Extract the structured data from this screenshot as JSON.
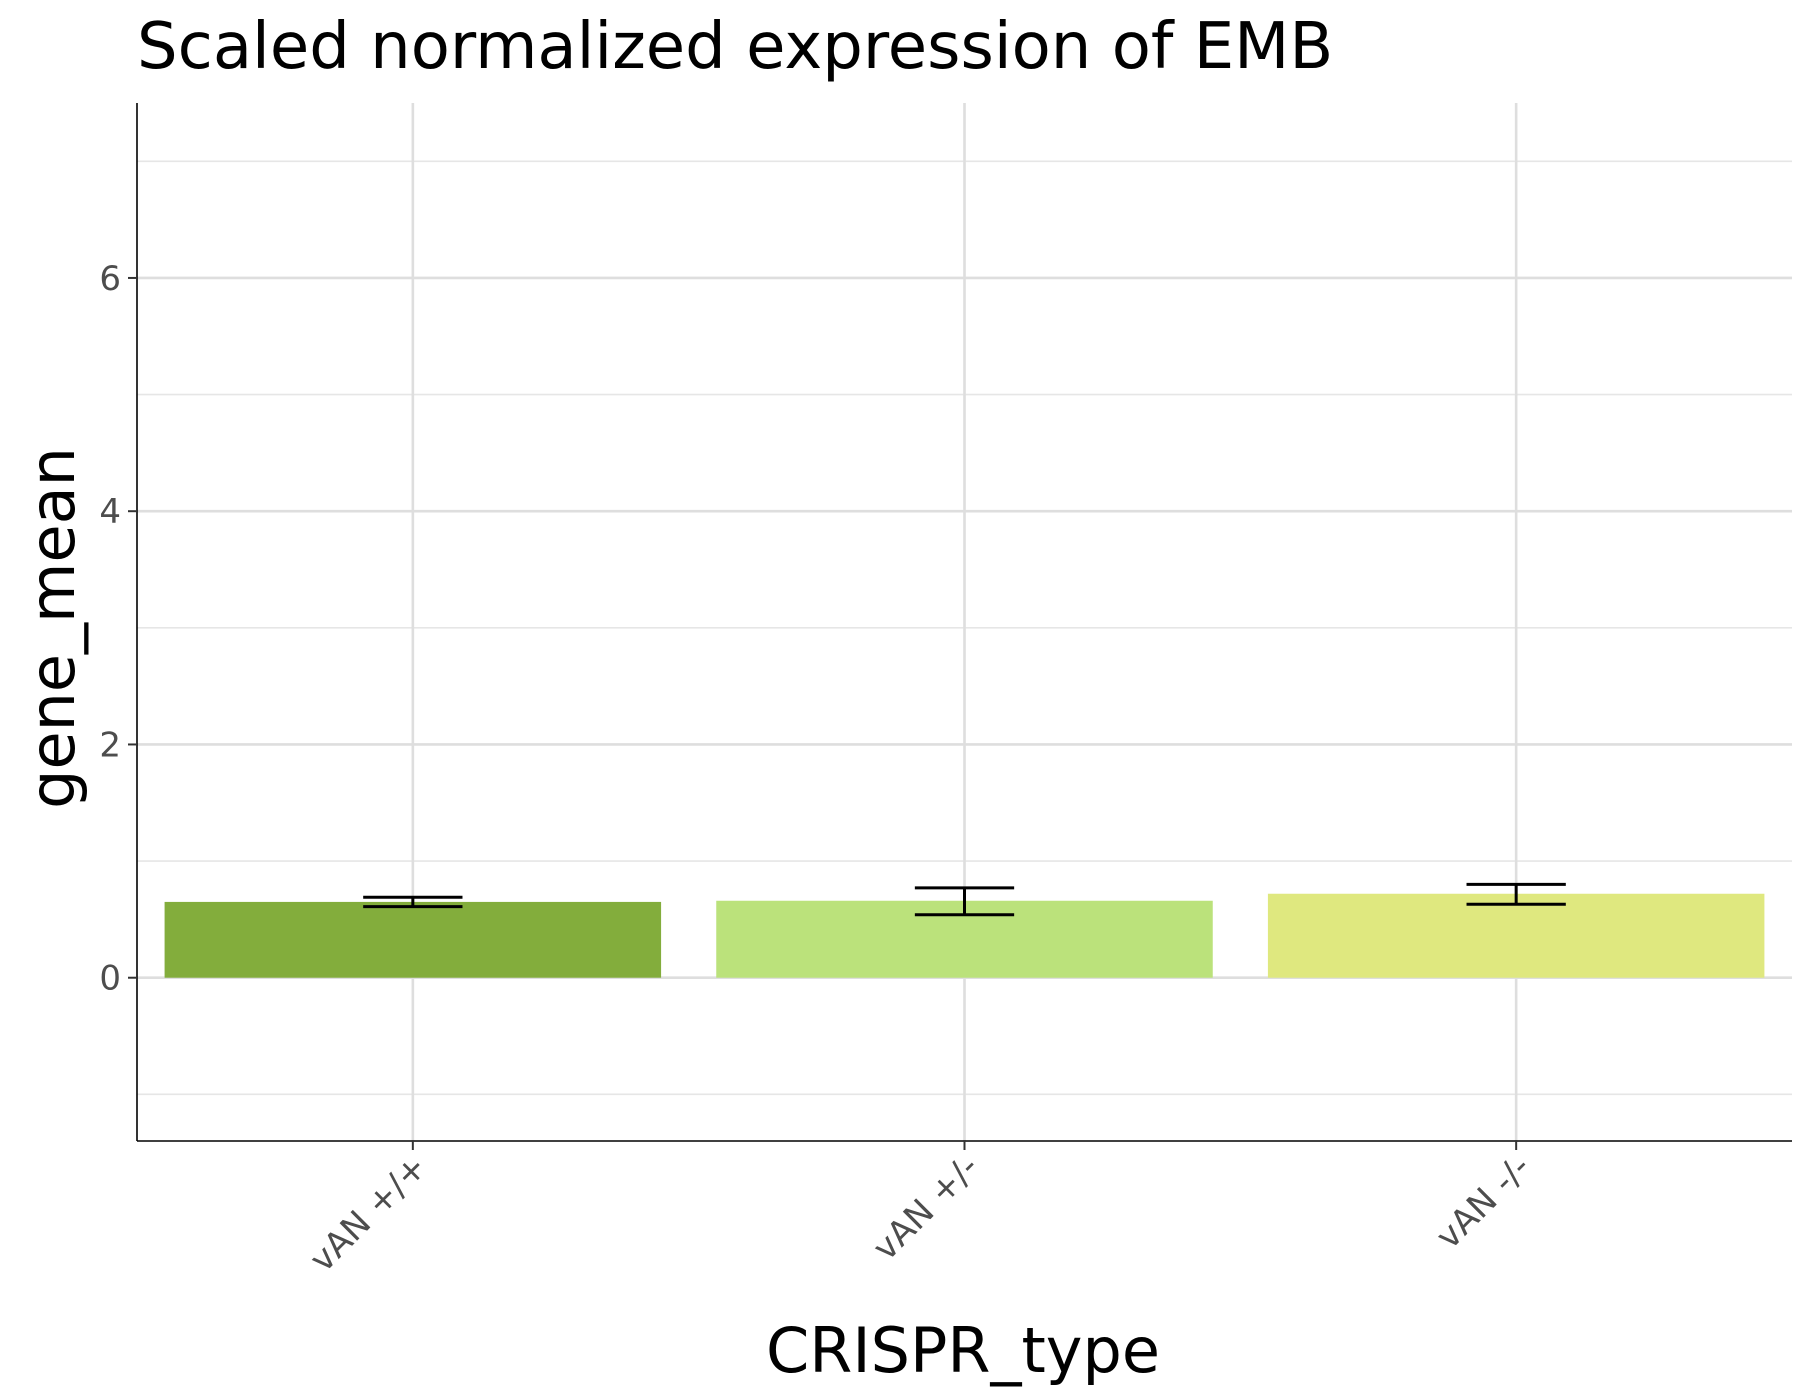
{
  "chart_data": {
    "type": "bar",
    "title": "Scaled normalized expression of EMB",
    "xlabel": "CRISPR_type",
    "ylabel": "gene_mean",
    "categories": [
      "vAN +/+",
      "vAN +/-",
      "vAN -/-"
    ],
    "values": [
      0.65,
      0.66,
      0.72
    ],
    "error_low": [
      0.61,
      0.54,
      0.63
    ],
    "error_high": [
      0.69,
      0.77,
      0.8
    ],
    "colors": [
      "#83ad3c",
      "#bbe27b",
      "#dfe87f"
    ],
    "ylim": [
      -1.4,
      7.5
    ],
    "yticks": [
      "0",
      "2",
      "4",
      "6"
    ],
    "ytick_values": [
      0,
      2,
      4,
      6
    ],
    "yminor_values": [
      -1,
      1,
      3,
      5,
      7
    ],
    "grid": true,
    "legend": "none"
  }
}
